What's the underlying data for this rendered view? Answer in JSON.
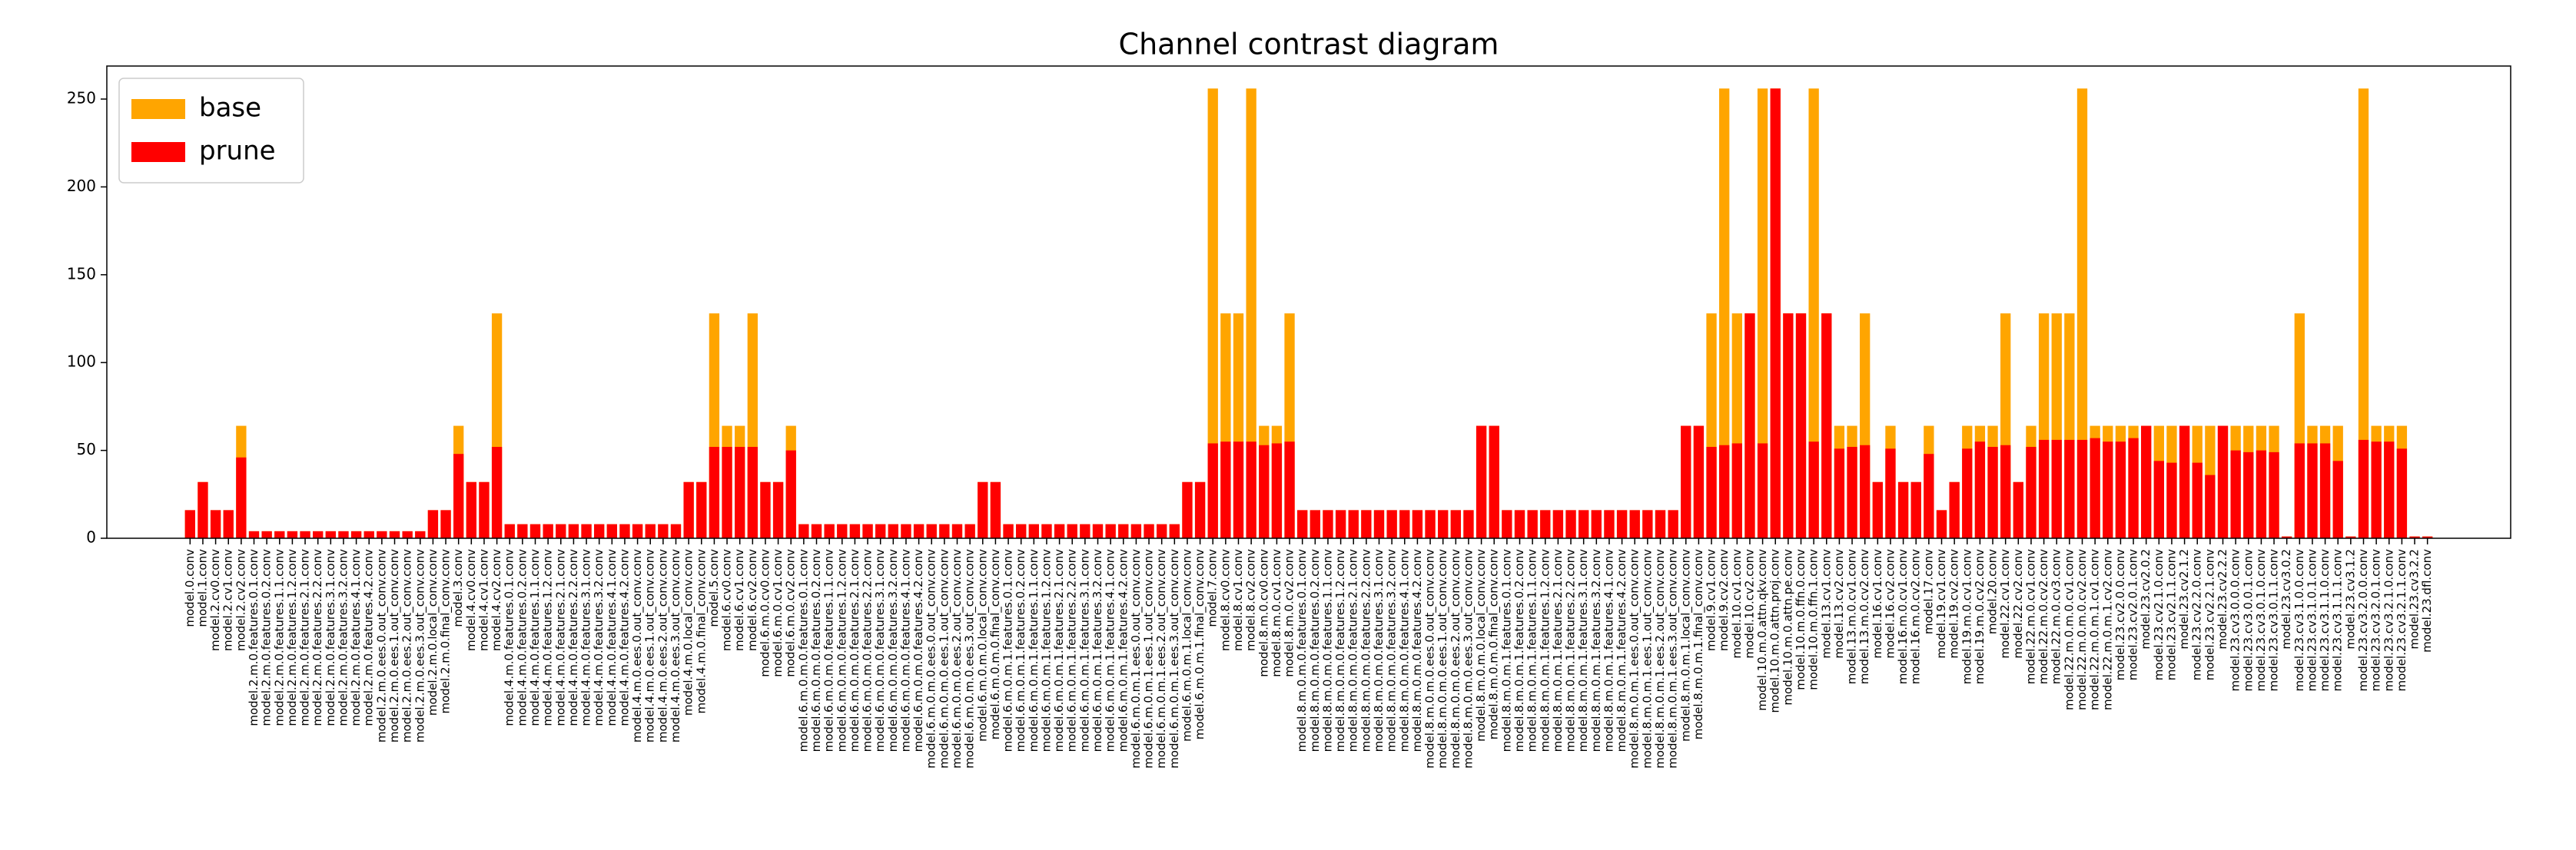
{
  "chart_data": {
    "type": "bar",
    "title": "Channel contrast diagram",
    "categories": [
      "model.0.conv",
      "model.1.conv",
      "model.2.cv0.conv",
      "model.2.cv1.conv",
      "model.2.cv2.conv",
      "model.2.m.0.features.0.1.conv",
      "model.2.m.0.features.0.2.conv",
      "model.2.m.0.features.1.1.conv",
      "model.2.m.0.features.1.2.conv",
      "model.2.m.0.features.2.1.conv",
      "model.2.m.0.features.2.2.conv",
      "model.2.m.0.features.3.1.conv",
      "model.2.m.0.features.3.2.conv",
      "model.2.m.0.features.4.1.conv",
      "model.2.m.0.features.4.2.conv",
      "model.2.m.0.ees.0.out_conv.conv",
      "model.2.m.0.ees.1.out_conv.conv",
      "model.2.m.0.ees.2.out_conv.conv",
      "model.2.m.0.ees.3.out_conv.conv",
      "model.2.m.0.local_conv.conv",
      "model.2.m.0.final_conv.conv",
      "model.3.conv",
      "model.4.cv0.conv",
      "model.4.cv1.conv",
      "model.4.cv2.conv",
      "model.4.m.0.features.0.1.conv",
      "model.4.m.0.features.0.2.conv",
      "model.4.m.0.features.1.1.conv",
      "model.4.m.0.features.1.2.conv",
      "model.4.m.0.features.2.1.conv",
      "model.4.m.0.features.2.2.conv",
      "model.4.m.0.features.3.1.conv",
      "model.4.m.0.features.3.2.conv",
      "model.4.m.0.features.4.1.conv",
      "model.4.m.0.features.4.2.conv",
      "model.4.m.0.ees.0.out_conv.conv",
      "model.4.m.0.ees.1.out_conv.conv",
      "model.4.m.0.ees.2.out_conv.conv",
      "model.4.m.0.ees.3.out_conv.conv",
      "model.4.m.0.local_conv.conv",
      "model.4.m.0.final_conv.conv",
      "model.5.conv",
      "model.6.cv0.conv",
      "model.6.cv1.conv",
      "model.6.cv2.conv",
      "model.6.m.0.cv0.conv",
      "model.6.m.0.cv1.conv",
      "model.6.m.0.cv2.conv",
      "model.6.m.0.m.0.features.0.1.conv",
      "model.6.m.0.m.0.features.0.2.conv",
      "model.6.m.0.m.0.features.1.1.conv",
      "model.6.m.0.m.0.features.1.2.conv",
      "model.6.m.0.m.0.features.2.1.conv",
      "model.6.m.0.m.0.features.2.2.conv",
      "model.6.m.0.m.0.features.3.1.conv",
      "model.6.m.0.m.0.features.3.2.conv",
      "model.6.m.0.m.0.features.4.1.conv",
      "model.6.m.0.m.0.features.4.2.conv",
      "model.6.m.0.m.0.ees.0.out_conv.conv",
      "model.6.m.0.m.0.ees.1.out_conv.conv",
      "model.6.m.0.m.0.ees.2.out_conv.conv",
      "model.6.m.0.m.0.ees.3.out_conv.conv",
      "model.6.m.0.m.0.local_conv.conv",
      "model.6.m.0.m.0.final_conv.conv",
      "model.6.m.0.m.1.features.0.1.conv",
      "model.6.m.0.m.1.features.0.2.conv",
      "model.6.m.0.m.1.features.1.1.conv",
      "model.6.m.0.m.1.features.1.2.conv",
      "model.6.m.0.m.1.features.2.1.conv",
      "model.6.m.0.m.1.features.2.2.conv",
      "model.6.m.0.m.1.features.3.1.conv",
      "model.6.m.0.m.1.features.3.2.conv",
      "model.6.m.0.m.1.features.4.1.conv",
      "model.6.m.0.m.1.features.4.2.conv",
      "model.6.m.0.m.1.ees.0.out_conv.conv",
      "model.6.m.0.m.1.ees.1.out_conv.conv",
      "model.6.m.0.m.1.ees.2.out_conv.conv",
      "model.6.m.0.m.1.ees.3.out_conv.conv",
      "model.6.m.0.m.1.local_conv.conv",
      "model.6.m.0.m.1.final_conv.conv",
      "model.7.conv",
      "model.8.cv0.conv",
      "model.8.cv1.conv",
      "model.8.cv2.conv",
      "model.8.m.0.cv0.conv",
      "model.8.m.0.cv1.conv",
      "model.8.m.0.cv2.conv",
      "model.8.m.0.m.0.features.0.1.conv",
      "model.8.m.0.m.0.features.0.2.conv",
      "model.8.m.0.m.0.features.1.1.conv",
      "model.8.m.0.m.0.features.1.2.conv",
      "model.8.m.0.m.0.features.2.1.conv",
      "model.8.m.0.m.0.features.2.2.conv",
      "model.8.m.0.m.0.features.3.1.conv",
      "model.8.m.0.m.0.features.3.2.conv",
      "model.8.m.0.m.0.features.4.1.conv",
      "model.8.m.0.m.0.features.4.2.conv",
      "model.8.m.0.m.0.ees.0.out_conv.conv",
      "model.8.m.0.m.0.ees.1.out_conv.conv",
      "model.8.m.0.m.0.ees.2.out_conv.conv",
      "model.8.m.0.m.0.ees.3.out_conv.conv",
      "model.8.m.0.m.0.local_conv.conv",
      "model.8.m.0.m.0.final_conv.conv",
      "model.8.m.0.m.1.features.0.1.conv",
      "model.8.m.0.m.1.features.0.2.conv",
      "model.8.m.0.m.1.features.1.1.conv",
      "model.8.m.0.m.1.features.1.2.conv",
      "model.8.m.0.m.1.features.2.1.conv",
      "model.8.m.0.m.1.features.2.2.conv",
      "model.8.m.0.m.1.features.3.1.conv",
      "model.8.m.0.m.1.features.3.2.conv",
      "model.8.m.0.m.1.features.4.1.conv",
      "model.8.m.0.m.1.features.4.2.conv",
      "model.8.m.0.m.1.ees.0.out_conv.conv",
      "model.8.m.0.m.1.ees.1.out_conv.conv",
      "model.8.m.0.m.1.ees.2.out_conv.conv",
      "model.8.m.0.m.1.ees.3.out_conv.conv",
      "model.8.m.0.m.1.local_conv.conv",
      "model.8.m.0.m.1.final_conv.conv",
      "model.9.cv1.conv",
      "model.9.cv2.conv",
      "model.10.cv1.conv",
      "model.10.cv2.conv",
      "model.10.m.0.attn.qkv.conv",
      "model.10.m.0.attn.proj.conv",
      "model.10.m.0.attn.pe.conv",
      "model.10.m.0.ffn.0.conv",
      "model.10.m.0.ffn.1.conv",
      "model.13.cv1.conv",
      "model.13.cv2.conv",
      "model.13.m.0.cv1.conv",
      "model.13.m.0.cv2.conv",
      "model.16.cv1.conv",
      "model.16.cv2.conv",
      "model.16.m.0.cv1.conv",
      "model.16.m.0.cv2.conv",
      "model.17.conv",
      "model.19.cv1.conv",
      "model.19.cv2.conv",
      "model.19.m.0.cv1.conv",
      "model.19.m.0.cv2.conv",
      "model.20.conv",
      "model.22.cv1.conv",
      "model.22.cv2.conv",
      "model.22.m.0.cv1.conv",
      "model.22.m.0.cv2.conv",
      "model.22.m.0.cv3.conv",
      "model.22.m.0.m.0.cv1.conv",
      "model.22.m.0.m.0.cv2.conv",
      "model.22.m.0.m.1.cv1.conv",
      "model.22.m.0.m.1.cv2.conv",
      "model.23.cv2.0.0.conv",
      "model.23.cv2.0.1.conv",
      "model.23.cv2.0.2",
      "model.23.cv2.1.0.conv",
      "model.23.cv2.1.1.conv",
      "model.23.cv2.1.2",
      "model.23.cv2.2.0.conv",
      "model.23.cv2.2.1.conv",
      "model.23.cv2.2.2",
      "model.23.cv3.0.0.0.conv",
      "model.23.cv3.0.0.1.conv",
      "model.23.cv3.0.1.0.conv",
      "model.23.cv3.0.1.1.conv",
      "model.23.cv3.0.2",
      "model.23.cv3.1.0.0.conv",
      "model.23.cv3.1.0.1.conv",
      "model.23.cv3.1.1.0.conv",
      "model.23.cv3.1.1.1.conv",
      "model.23.cv3.1.2",
      "model.23.cv3.2.0.0.conv",
      "model.23.cv3.2.0.1.conv",
      "model.23.cv3.2.1.0.conv",
      "model.23.cv3.2.1.1.conv",
      "model.23.cv3.2.2",
      "model.23.dfl.conv"
    ],
    "series": [
      {
        "name": "base",
        "color": "#ffa500",
        "values": [
          16,
          32,
          16,
          16,
          64,
          4,
          4,
          4,
          4,
          4,
          4,
          4,
          4,
          4,
          4,
          4,
          4,
          4,
          4,
          16,
          16,
          64,
          32,
          32,
          128,
          8,
          8,
          8,
          8,
          8,
          8,
          8,
          8,
          8,
          8,
          8,
          8,
          8,
          8,
          32,
          32,
          128,
          64,
          64,
          128,
          32,
          32,
          64,
          8,
          8,
          8,
          8,
          8,
          8,
          8,
          8,
          8,
          8,
          8,
          8,
          8,
          8,
          32,
          32,
          8,
          8,
          8,
          8,
          8,
          8,
          8,
          8,
          8,
          8,
          8,
          8,
          8,
          8,
          32,
          32,
          256,
          128,
          128,
          256,
          64,
          64,
          128,
          16,
          16,
          16,
          16,
          16,
          16,
          16,
          16,
          16,
          16,
          16,
          16,
          16,
          16,
          64,
          64,
          16,
          16,
          16,
          16,
          16,
          16,
          16,
          16,
          16,
          16,
          16,
          16,
          16,
          16,
          64,
          64,
          128,
          256,
          128,
          128,
          256,
          256,
          128,
          128,
          256,
          128,
          64,
          64,
          128,
          32,
          64,
          32,
          32,
          64,
          16,
          32,
          64,
          64,
          64,
          128,
          32,
          64,
          128,
          128,
          128,
          256,
          64,
          64,
          64,
          64,
          64,
          64,
          64,
          64,
          64,
          64,
          64,
          64,
          64,
          64,
          64,
          1,
          128,
          64,
          64,
          64,
          1,
          256,
          64,
          64,
          64,
          1,
          1
        ]
      },
      {
        "name": "prune",
        "color": "#ff0000",
        "values": [
          16,
          32,
          16,
          16,
          46,
          4,
          4,
          4,
          4,
          4,
          4,
          4,
          4,
          4,
          4,
          4,
          4,
          4,
          4,
          16,
          16,
          48,
          32,
          32,
          52,
          8,
          8,
          8,
          8,
          8,
          8,
          8,
          8,
          8,
          8,
          8,
          8,
          8,
          8,
          32,
          32,
          52,
          52,
          52,
          52,
          32,
          32,
          50,
          8,
          8,
          8,
          8,
          8,
          8,
          8,
          8,
          8,
          8,
          8,
          8,
          8,
          8,
          32,
          32,
          8,
          8,
          8,
          8,
          8,
          8,
          8,
          8,
          8,
          8,
          8,
          8,
          8,
          8,
          32,
          32,
          54,
          55,
          55,
          55,
          53,
          54,
          55,
          16,
          16,
          16,
          16,
          16,
          16,
          16,
          16,
          16,
          16,
          16,
          16,
          16,
          16,
          64,
          64,
          16,
          16,
          16,
          16,
          16,
          16,
          16,
          16,
          16,
          16,
          16,
          16,
          16,
          16,
          64,
          64,
          52,
          53,
          54,
          128,
          54,
          256,
          128,
          128,
          55,
          128,
          51,
          52,
          53,
          32,
          51,
          32,
          32,
          48,
          16,
          32,
          51,
          55,
          52,
          53,
          32,
          52,
          56,
          56,
          56,
          56,
          57,
          55,
          55,
          57,
          64,
          44,
          43,
          64,
          43,
          36,
          64,
          50,
          49,
          50,
          49,
          1,
          54,
          54,
          54,
          44,
          1,
          56,
          55,
          55,
          51,
          1,
          1
        ]
      }
    ],
    "ylim": [
      0,
      268.8
    ],
    "yticks": [
      0,
      50,
      100,
      150,
      200,
      250
    ],
    "legend": "upper left",
    "grid": false
  }
}
